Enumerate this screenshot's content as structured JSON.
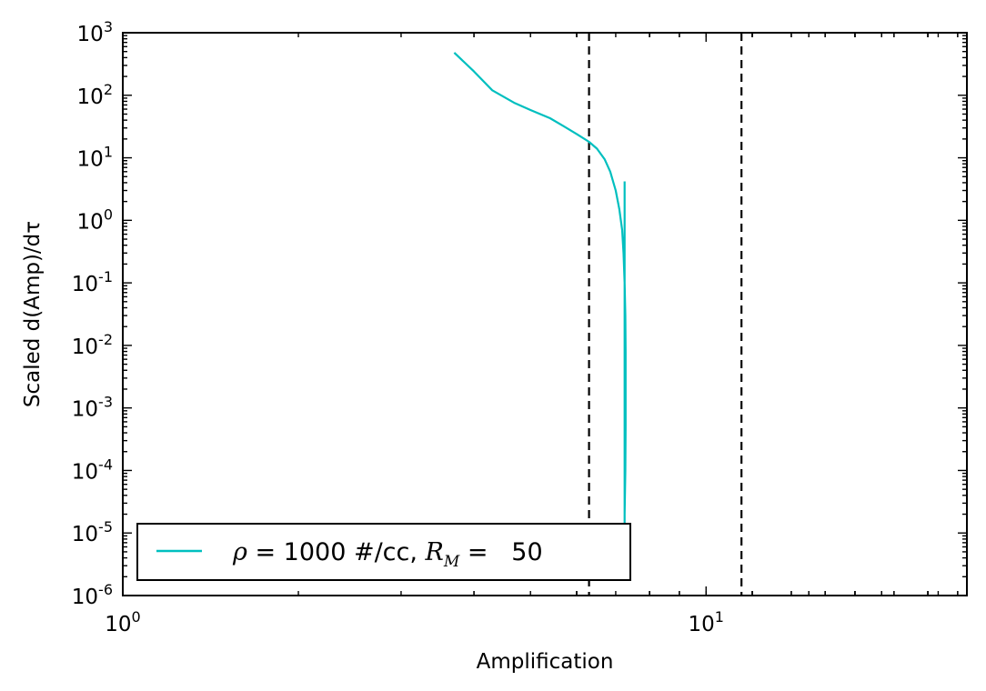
{
  "chart_data": {
    "type": "line",
    "title": "",
    "xlabel": "Amplification",
    "ylabel": "Scaled d(Amp)/dτ",
    "xscale": "log",
    "yscale": "log",
    "xlim": [
      1,
      28
    ],
    "ylim": [
      1e-06,
      1000
    ],
    "x_ticks": [
      {
        "base": "10",
        "exp": "0",
        "value": 1
      },
      {
        "base": "10",
        "exp": "1",
        "value": 10
      }
    ],
    "y_ticks": [
      {
        "base": "10",
        "exp": "-6",
        "value": 1e-06
      },
      {
        "base": "10",
        "exp": "-5",
        "value": 1e-05
      },
      {
        "base": "10",
        "exp": "-4",
        "value": 0.0001
      },
      {
        "base": "10",
        "exp": "-3",
        "value": 0.001
      },
      {
        "base": "10",
        "exp": "-2",
        "value": 0.01
      },
      {
        "base": "10",
        "exp": "-1",
        "value": 0.1
      },
      {
        "base": "10",
        "exp": "0",
        "value": 1
      },
      {
        "base": "10",
        "exp": "1",
        "value": 10
      },
      {
        "base": "10",
        "exp": "2",
        "value": 100
      },
      {
        "base": "10",
        "exp": "3",
        "value": 1000
      }
    ],
    "grid": false,
    "legend_position": "lower-left",
    "series": [
      {
        "legend_parts": [
          "ρ",
          " = 1000 #/cc, ",
          "R",
          "M",
          " =   50"
        ],
        "color": "#00bfbf",
        "x": [
          3.7,
          4.0,
          4.3,
          4.7,
          5.0,
          5.4,
          5.7,
          6.0,
          6.3,
          6.5,
          6.7,
          6.85,
          7.0,
          7.1,
          7.18,
          7.22,
          7.25,
          7.27,
          7.28,
          7.28,
          7.28,
          7.27,
          7.25,
          7.25,
          7.25,
          7.25,
          7.25,
          7.25,
          7.25
        ],
        "y": [
          480,
          240,
          120,
          75,
          58,
          43,
          32,
          24,
          18,
          14,
          9.5,
          6.0,
          3.0,
          1.5,
          0.7,
          0.3,
          0.1,
          0.03,
          0.008,
          0.002,
          0.0005,
          0.0001,
          2e-05,
          1e-05,
          0.1,
          1,
          2,
          3,
          4.2
        ]
      }
    ],
    "vlines": [
      {
        "x": 6.3,
        "style": "dashed",
        "color": "#000000"
      },
      {
        "x": 11.5,
        "style": "dashed",
        "color": "#000000"
      }
    ]
  }
}
